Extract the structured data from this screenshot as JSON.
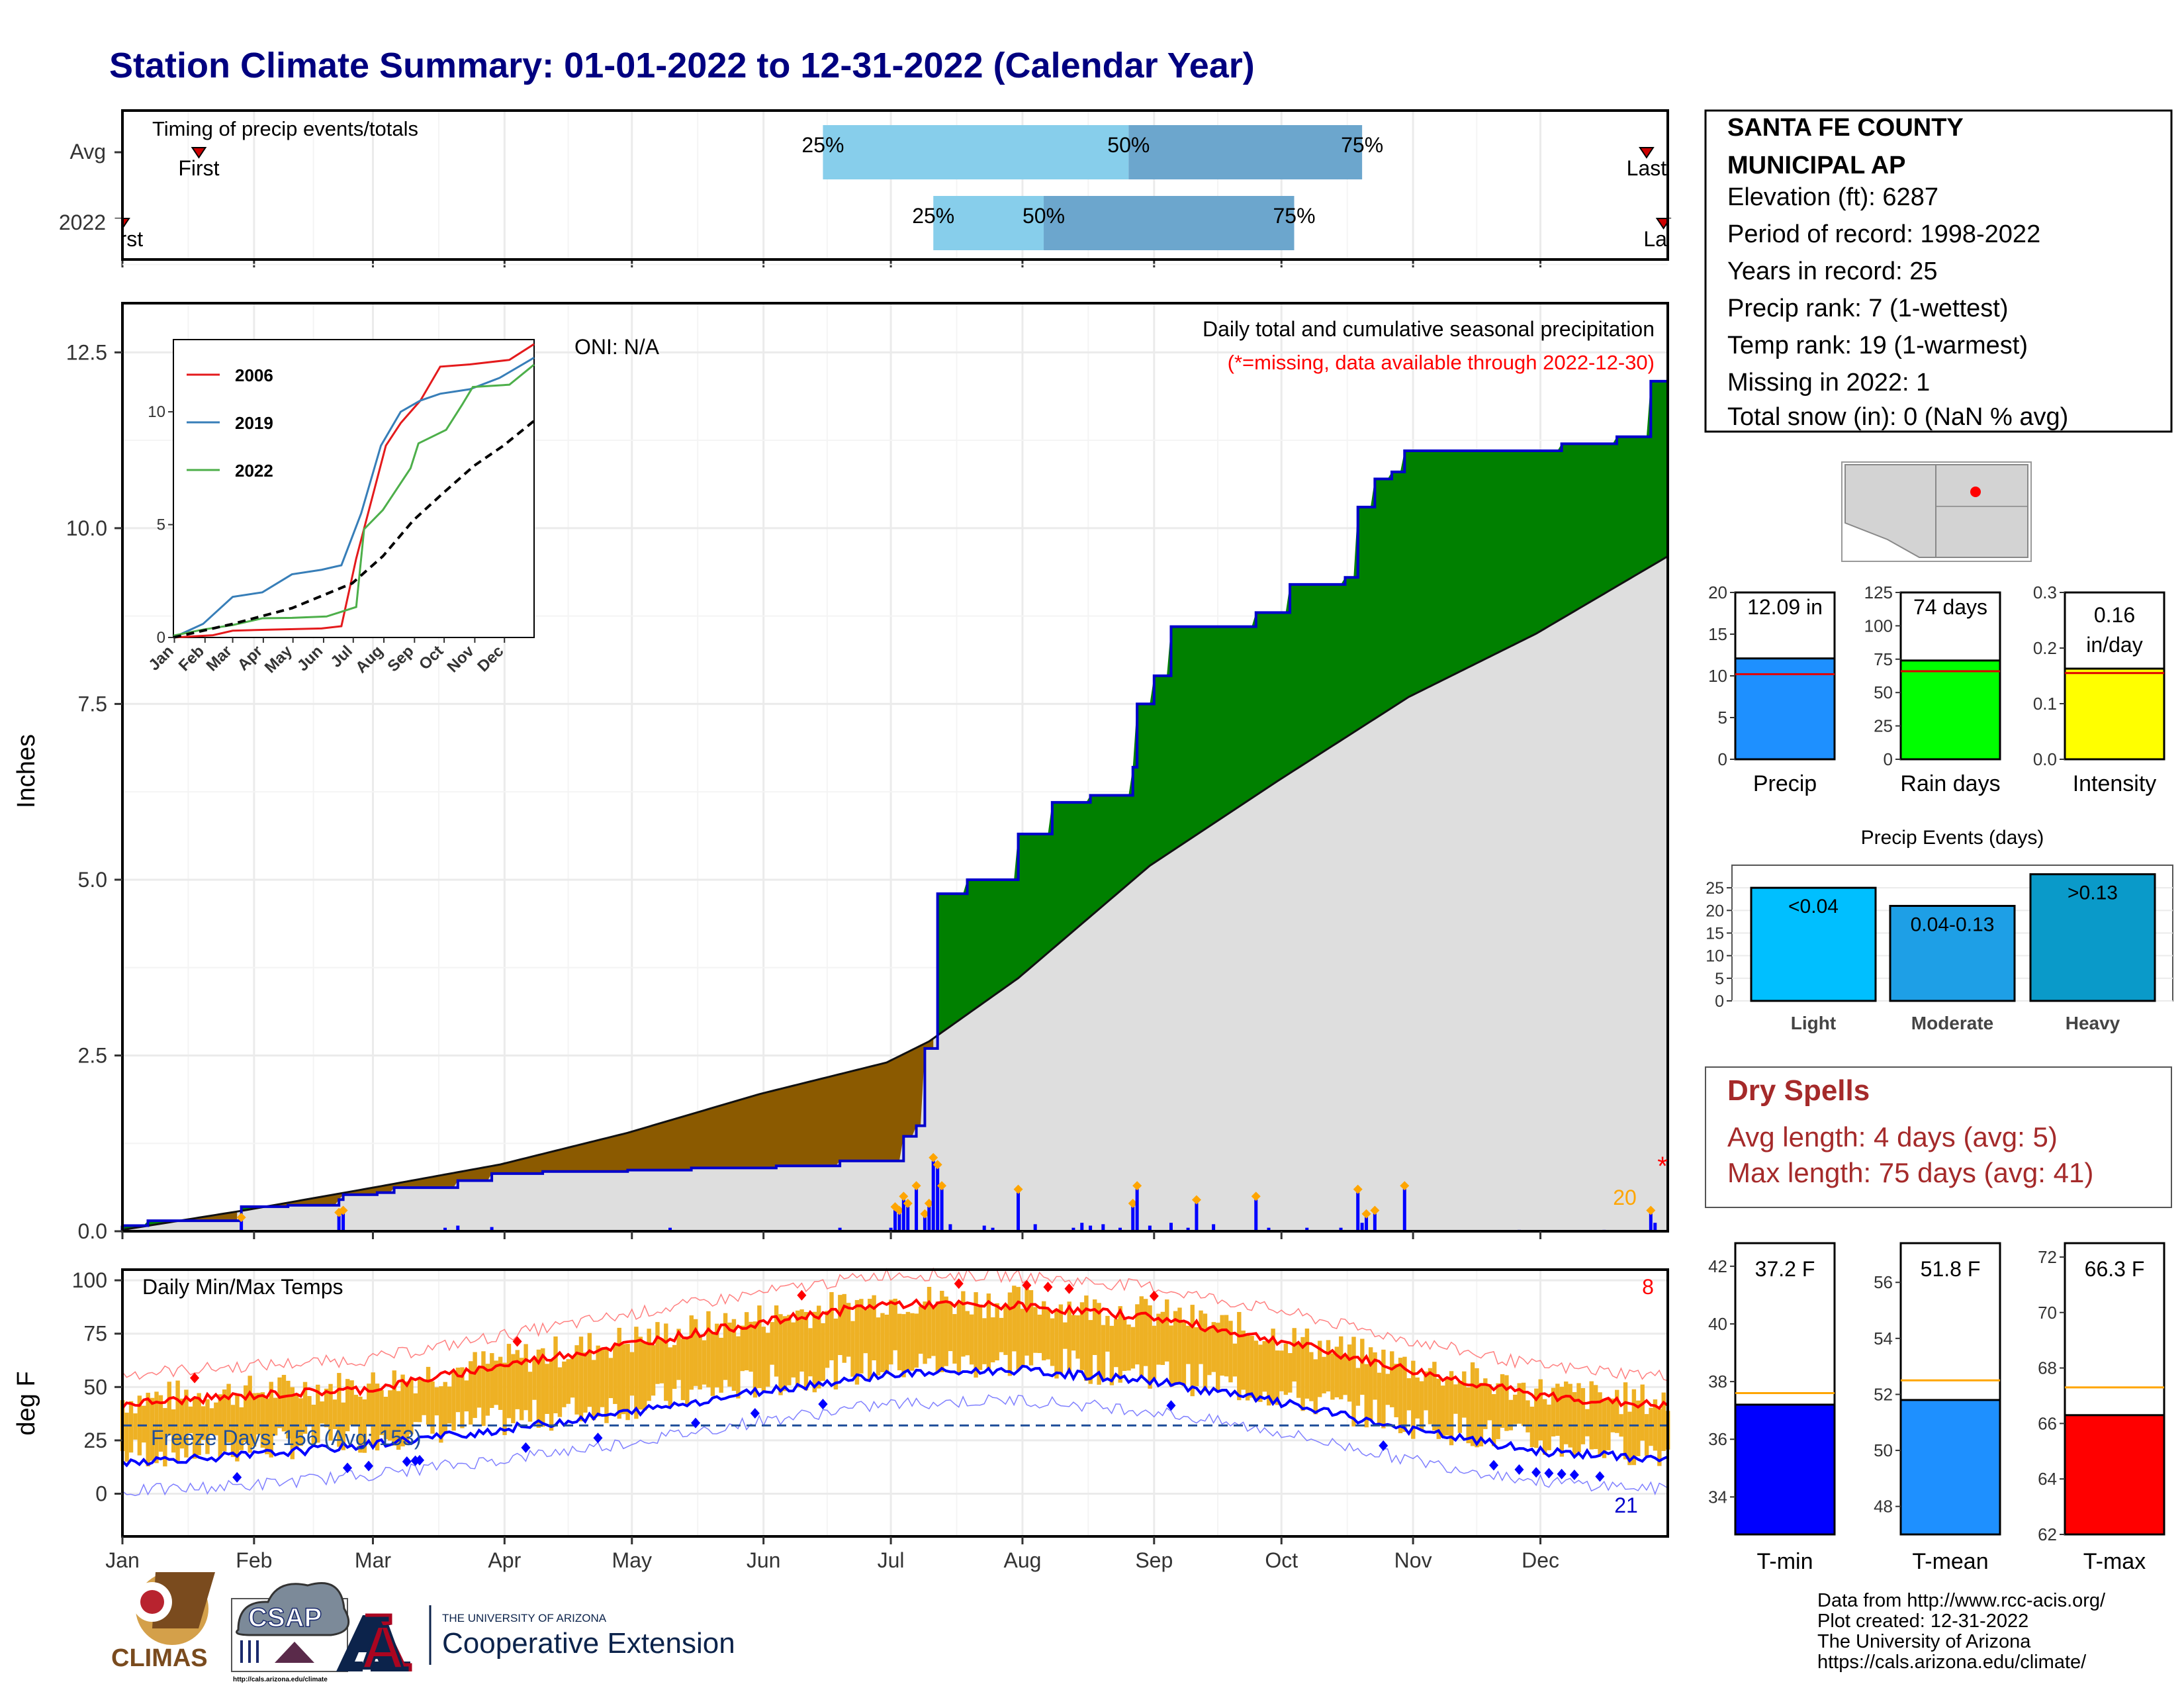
{
  "title": "Station Climate Summary: 01-01-2022 to 12-31-2022 (Calendar Year)",
  "colors": {
    "title": "#000080",
    "avg_area": "#dedede",
    "above": "#008000",
    "below": "#8b5a00",
    "cum_line": "#0000cc",
    "daily_bar": "#0000ff",
    "precip_marker": "#ffa500",
    "missing": "#ff0000",
    "tmax": "#ff0000",
    "tmin": "#0000ff",
    "tbar": "#eeb124",
    "avg_line": "#ffa500"
  },
  "months": [
    "Jan",
    "Feb",
    "Mar",
    "Apr",
    "May",
    "Jun",
    "Jul",
    "Aug",
    "Sep",
    "Oct",
    "Nov",
    "Dec"
  ],
  "timing": {
    "label": "Timing of precip events/totals",
    "rows": [
      {
        "name": "Avg",
        "first": "First",
        "last": "Last",
        "q25": "25%",
        "q50": "50%",
        "q75": "75%"
      },
      {
        "name": "2022",
        "first": "First",
        "last": "Last",
        "q25": "25%",
        "q50": "50%",
        "q75": "75%"
      }
    ]
  },
  "chart_data": [
    {
      "type": "bar",
      "name": "Timing of precip events/totals",
      "series": [
        {
          "name": "Avg",
          "first_doy": 19,
          "q25_doy": 166,
          "q50_doy": 238,
          "q75_doy": 293,
          "last_doy": 360
        },
        {
          "name": "2022",
          "first_doy": 1,
          "q25_doy": 192,
          "q50_doy": 218,
          "q75_doy": 277,
          "last_doy": 364
        }
      ]
    },
    {
      "type": "area",
      "title": "Daily total and cumulative seasonal precipitation",
      "note": "(*=missing, data available through 2022-12-30)",
      "ylabel": "Inches",
      "ylim": [
        0,
        13.2
      ],
      "yticks": [
        "0.0",
        "2.5",
        "5.0",
        "7.5",
        "10.0",
        "12.5"
      ],
      "oni": "ONI: N/A",
      "missing_label": "*",
      "top_days_label": "20",
      "cumulative_2022": [
        [
          1,
          0.08
        ],
        [
          7,
          0.15
        ],
        [
          28,
          0.15
        ],
        [
          29,
          0.35
        ],
        [
          40,
          0.37
        ],
        [
          52,
          0.45
        ],
        [
          53,
          0.52
        ],
        [
          61,
          0.55
        ],
        [
          65,
          0.62
        ],
        [
          80,
          0.72
        ],
        [
          88,
          0.82
        ],
        [
          100,
          0.85
        ],
        [
          120,
          0.87
        ],
        [
          135,
          0.9
        ],
        [
          155,
          0.93
        ],
        [
          170,
          1.0
        ],
        [
          184,
          1.0
        ],
        [
          185,
          1.35
        ],
        [
          188,
          1.5
        ],
        [
          190,
          2.6
        ],
        [
          193,
          4.8
        ],
        [
          200,
          5.0
        ],
        [
          210,
          5.0
        ],
        [
          212,
          5.65
        ],
        [
          220,
          6.1
        ],
        [
          229,
          6.2
        ],
        [
          239,
          6.6
        ],
        [
          240,
          7.5
        ],
        [
          244,
          7.9
        ],
        [
          248,
          8.6
        ],
        [
          260,
          8.6
        ],
        [
          268,
          8.8
        ],
        [
          276,
          9.2
        ],
        [
          289,
          9.3
        ],
        [
          292,
          10.3
        ],
        [
          296,
          10.7
        ],
        [
          300,
          10.8
        ],
        [
          303,
          11.1
        ],
        [
          320,
          11.1
        ],
        [
          340,
          11.2
        ],
        [
          353,
          11.3
        ],
        [
          360,
          11.3
        ],
        [
          361,
          12.09
        ]
      ],
      "average_cumulative": [
        [
          1,
          0.02
        ],
        [
          30,
          0.3
        ],
        [
          60,
          0.62
        ],
        [
          90,
          0.95
        ],
        [
          120,
          1.4
        ],
        [
          151,
          1.95
        ],
        [
          181,
          2.4
        ],
        [
          191,
          2.7
        ],
        [
          212,
          3.6
        ],
        [
          243,
          5.2
        ],
        [
          273,
          6.4
        ],
        [
          304,
          7.6
        ],
        [
          334,
          8.5
        ],
        [
          365,
          9.6
        ]
      ],
      "daily_events": [
        [
          1,
          0.08
        ],
        [
          29,
          0.15
        ],
        [
          52,
          0.22
        ],
        [
          53,
          0.25
        ],
        [
          77,
          0.05
        ],
        [
          80,
          0.08
        ],
        [
          88,
          0.06
        ],
        [
          130,
          0.05
        ],
        [
          170,
          0.05
        ],
        [
          182,
          0.05
        ],
        [
          183,
          0.3
        ],
        [
          184,
          0.25
        ],
        [
          185,
          0.45
        ],
        [
          186,
          0.35
        ],
        [
          188,
          0.6
        ],
        [
          190,
          0.2
        ],
        [
          191,
          0.35
        ],
        [
          192,
          1.0
        ],
        [
          193,
          0.9
        ],
        [
          194,
          0.6
        ],
        [
          196,
          0.1
        ],
        [
          204,
          0.08
        ],
        [
          206,
          0.05
        ],
        [
          212,
          0.55
        ],
        [
          216,
          0.1
        ],
        [
          225,
          0.05
        ],
        [
          227,
          0.12
        ],
        [
          229,
          0.08
        ],
        [
          232,
          0.1
        ],
        [
          236,
          0.05
        ],
        [
          239,
          0.35
        ],
        [
          240,
          0.6
        ],
        [
          243,
          0.08
        ],
        [
          248,
          0.12
        ],
        [
          252,
          0.05
        ],
        [
          254,
          0.4
        ],
        [
          258,
          0.1
        ],
        [
          268,
          0.45
        ],
        [
          271,
          0.05
        ],
        [
          280,
          0.05
        ],
        [
          288,
          0.05
        ],
        [
          292,
          0.55
        ],
        [
          293,
          0.12
        ],
        [
          294,
          0.2
        ],
        [
          296,
          0.25
        ],
        [
          303,
          0.6
        ],
        [
          330,
          0.02
        ],
        [
          350,
          0.02
        ],
        [
          361,
          0.25
        ],
        [
          362,
          0.12
        ]
      ],
      "inset": {
        "type": "line",
        "xlabels": [
          "Jan",
          "Feb",
          "Mar",
          "Apr",
          "May",
          "Jun",
          "Jul",
          "Aug",
          "Sep",
          "Oct",
          "Nov",
          "Dec"
        ],
        "yticks": [
          "0",
          "5",
          "10"
        ],
        "ylim": [
          0,
          13.2
        ],
        "series": [
          {
            "name": "2006",
            "color": "#e41a1c",
            "values": [
              [
                0,
                0
              ],
              [
                40,
                0.1
              ],
              [
                60,
                0.3
              ],
              [
                100,
                0.35
              ],
              [
                150,
                0.4
              ],
              [
                170,
                0.5
              ],
              [
                185,
                3.5
              ],
              [
                200,
                6.0
              ],
              [
                215,
                8.5
              ],
              [
                230,
                9.5
              ],
              [
                250,
                10.5
              ],
              [
                270,
                12.0
              ],
              [
                300,
                12.1
              ],
              [
                340,
                12.3
              ],
              [
                365,
                13.0
              ]
            ]
          },
          {
            "name": "2019",
            "color": "#377eb8",
            "values": [
              [
                0,
                0
              ],
              [
                30,
                0.6
              ],
              [
                60,
                1.8
              ],
              [
                90,
                2.0
              ],
              [
                120,
                2.8
              ],
              [
                150,
                3.0
              ],
              [
                170,
                3.2
              ],
              [
                190,
                5.5
              ],
              [
                210,
                8.5
              ],
              [
                230,
                10.0
              ],
              [
                250,
                10.5
              ],
              [
                270,
                10.8
              ],
              [
                300,
                11.0
              ],
              [
                330,
                11.5
              ],
              [
                365,
                12.4
              ]
            ]
          },
          {
            "name": "2022",
            "color": "#4daf4a",
            "values": [
              [
                0,
                0.08
              ],
              [
                30,
                0.35
              ],
              [
                60,
                0.55
              ],
              [
                90,
                0.85
              ],
              [
                120,
                0.87
              ],
              [
                155,
                0.93
              ],
              [
                185,
                1.35
              ],
              [
                193,
                4.8
              ],
              [
                212,
                5.65
              ],
              [
                240,
                7.5
              ],
              [
                248,
                8.6
              ],
              [
                276,
                9.2
              ],
              [
                292,
                10.3
              ],
              [
                303,
                11.1
              ],
              [
                340,
                11.2
              ],
              [
                365,
                12.09
              ]
            ]
          },
          {
            "name": "Average",
            "color": "#000000",
            "dashed": true,
            "values": [
              [
                0,
                0
              ],
              [
                60,
                0.6
              ],
              [
                120,
                1.3
              ],
              [
                181,
                2.4
              ],
              [
                212,
                3.6
              ],
              [
                243,
                5.2
              ],
              [
                273,
                6.4
              ],
              [
                304,
                7.6
              ],
              [
                334,
                8.5
              ],
              [
                365,
                9.6
              ]
            ]
          }
        ]
      }
    },
    {
      "type": "line",
      "title": "Daily Min/Max Temps",
      "ylabel": "deg F",
      "ylim": [
        -20,
        105
      ],
      "yticks": [
        "0",
        "25",
        "50",
        "75",
        "100"
      ],
      "freeze_label": "Freeze Days: 156 (Avg: 153)",
      "freeze_threshold": 32,
      "record_high_count": "8",
      "record_low_count": "21",
      "avg_max": [
        [
          1,
          42
        ],
        [
          31,
          46
        ],
        [
          59,
          49
        ],
        [
          90,
          60
        ],
        [
          120,
          70
        ],
        [
          151,
          80
        ],
        [
          181,
          89
        ],
        [
          212,
          88
        ],
        [
          243,
          83
        ],
        [
          273,
          72
        ],
        [
          304,
          58
        ],
        [
          334,
          46
        ],
        [
          365,
          41
        ]
      ],
      "avg_min": [
        [
          1,
          15
        ],
        [
          31,
          18
        ],
        [
          59,
          23
        ],
        [
          90,
          30
        ],
        [
          120,
          38
        ],
        [
          151,
          48
        ],
        [
          181,
          56
        ],
        [
          212,
          58
        ],
        [
          243,
          53
        ],
        [
          273,
          43
        ],
        [
          304,
          30
        ],
        [
          334,
          20
        ],
        [
          365,
          16
        ]
      ]
    },
    {
      "type": "bar",
      "name": "Season summary",
      "panels": [
        {
          "name": "Precip",
          "label": "12.09 in",
          "value": 12.09,
          "avg": 10.2,
          "ylim": [
            0,
            20
          ],
          "yticks": [
            "0",
            "5",
            "10",
            "15",
            "20"
          ],
          "color": "#1e90ff"
        },
        {
          "name": "Rain days",
          "label": "74 days",
          "value": 74,
          "avg": 66,
          "ylim": [
            0,
            125
          ],
          "yticks": [
            "0",
            "25",
            "50",
            "75",
            "100",
            "125"
          ],
          "color": "#00ff00"
        },
        {
          "name": "Intensity",
          "label": "0.16 in/day",
          "value": 0.163,
          "avg": 0.155,
          "ylim": [
            0,
            0.3
          ],
          "yticks": [
            "0.0",
            "0.1",
            "0.2",
            "0.3"
          ],
          "color": "#ffff00"
        }
      ]
    },
    {
      "type": "bar",
      "title": "Precip Events (days)",
      "categories": [
        "Light",
        "Moderate",
        "Heavy"
      ],
      "values": [
        25,
        21,
        28
      ],
      "labels": [
        "<0.04",
        "0.04-0.13",
        ">0.13"
      ],
      "yticks": [
        "0",
        "5",
        "10",
        "15",
        "20",
        "25"
      ],
      "ylim": [
        0,
        30
      ]
    },
    {
      "type": "bar",
      "name": "Temperature summary",
      "panels": [
        {
          "name": "T-min",
          "label": "37.2 F",
          "value": 37.2,
          "avg": 37.6,
          "ylim": [
            32.7,
            42.8
          ],
          "yticks": [
            "34",
            "36",
            "38",
            "40",
            "42"
          ],
          "color": "#0000ff"
        },
        {
          "name": "T-mean",
          "label": "51.8 F",
          "value": 51.8,
          "avg": 52.5,
          "ylim": [
            47,
            57.4
          ],
          "yticks": [
            "48",
            "50",
            "52",
            "54",
            "56"
          ],
          "color": "#1e90ff"
        },
        {
          "name": "T-max",
          "label": "66.3 F",
          "value": 66.3,
          "avg": 67.3,
          "ylim": [
            62,
            72.5
          ],
          "yticks": [
            "62",
            "64",
            "66",
            "68",
            "70",
            "72"
          ],
          "color": "#ff0000"
        }
      ]
    }
  ],
  "station": {
    "name1": "SANTA FE COUNTY",
    "name2": "MUNICIPAL AP",
    "elevation": "Elevation (ft): 6287",
    "period": "Period of record: 1998-2022",
    "years": "Years in record: 25",
    "precip_rank": "Precip rank: 7 (1-wettest)",
    "temp_rank": "Temp rank: 19 (1-warmest)",
    "missing": "Missing in 2022: 1",
    "snow": "Total snow (in): 0 (NaN % avg)"
  },
  "dry_spells": {
    "title": "Dry Spells",
    "avg": "Avg length: 4 days (avg: 5)",
    "max": "Max length: 75 days (avg: 41)"
  },
  "footer": {
    "line1": "Data from http://www.rcc-acis.org/",
    "line2": "Plot created: 12-31-2022",
    "line3": "The University of Arizona",
    "line4": "https://cals.arizona.edu/climate/"
  },
  "logos": {
    "climas": "CLIMAS",
    "csap": "CSAP",
    "csap_url": "http://cals.arizona.edu/climate",
    "ua_small": "THE UNIVERSITY OF ARIZONA",
    "ua_big": "Cooperative Extension"
  }
}
